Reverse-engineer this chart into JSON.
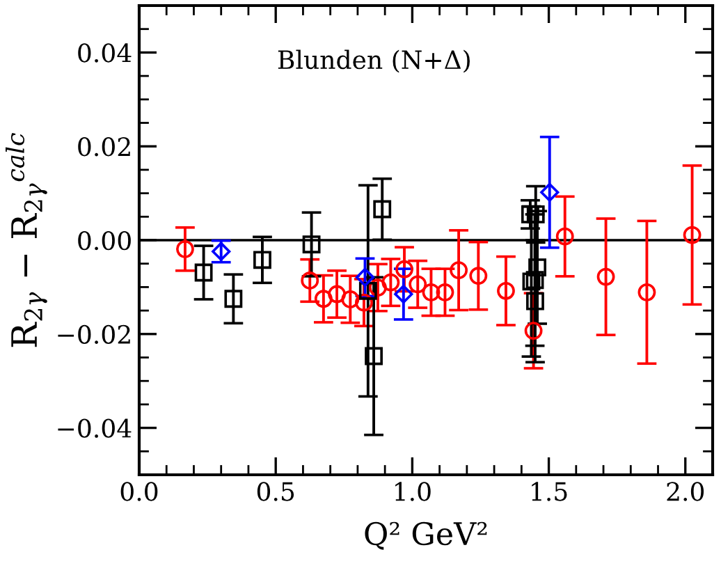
{
  "chart_data": {
    "type": "scatter",
    "xlabel": "Q² GeV²",
    "ylabel": "R$_{2γ}$ − R$_{2γ}$$^{calc}$",
    "annotations": [
      "Blunden (N+Δ)"
    ],
    "xlim": [
      0,
      2.1
    ],
    "xticks": [
      {
        "value": 0,
        "label": "0.0"
      },
      0.5,
      {
        "value": 1,
        "label": "1.0"
      },
      1.5,
      {
        "value": 2,
        "label": "2.0"
      }
    ],
    "ylim": [
      -0.05,
      0.05
    ],
    "yticks": [
      {
        "value": -0.04,
        "label": "−0.04"
      },
      {
        "value": -0.02,
        "label": "−0.02"
      },
      {
        "value": 0,
        "label": "0.00"
      },
      0.02,
      0.04
    ],
    "grid": false,
    "legend": false,
    "ref_lines": [
      {
        "axis": "y",
        "value": 0,
        "color": "#000000",
        "line_style": "solid"
      }
    ],
    "series": [
      {
        "color": "#ff0000",
        "marker": "circle",
        "x": [
          0.168,
          0.625,
          0.675,
          0.724,
          0.773,
          0.823,
          0.874,
          0.921,
          0.971,
          1.02,
          1.069,
          1.12,
          1.17,
          1.242,
          1.343,
          1.444,
          1.559,
          1.709,
          1.859,
          2.025
        ],
        "values": [
          -0.0019,
          -0.0086,
          -0.0125,
          -0.0115,
          -0.0126,
          -0.0133,
          -0.0101,
          -0.009,
          -0.0062,
          -0.0094,
          -0.0111,
          -0.0111,
          -0.0064,
          -0.0076,
          -0.0108,
          -0.0193,
          0.0008,
          -0.0078,
          -0.0111,
          0.0011
        ],
        "errors": [
          0.0046,
          0.0045,
          0.005,
          0.005,
          0.005,
          0.005,
          0.005,
          0.005,
          0.0047,
          0.005,
          0.005,
          0.005,
          0.0085,
          0.0072,
          0.0073,
          0.008,
          0.0085,
          0.0124,
          0.0152,
          0.0148
        ]
      },
      {
        "color": "#000000",
        "marker": "square",
        "x": [
          0.236,
          0.345,
          0.451,
          0.631,
          0.838,
          0.859,
          0.89,
          1.432,
          1.452,
          1.458,
          1.449,
          1.436,
          1.45
        ],
        "values": [
          -0.0069,
          -0.0125,
          -0.0042,
          -0.0009,
          -0.0108,
          -0.0247,
          0.0066,
          0.0055,
          0.0055,
          -0.0058,
          -0.0085,
          -0.0088,
          -0.013
        ],
        "errors": [
          0.0057,
          0.0052,
          0.0049,
          0.0068,
          0.0225,
          0.0168,
          0.0065,
          0.003,
          0.006,
          0.012,
          0.014,
          0.016,
          0.013
        ]
      },
      {
        "color": "#0000ff",
        "marker": "diamond",
        "x": [
          0.3,
          0.827,
          0.968,
          1.503
        ],
        "values": [
          -0.0024,
          -0.0079,
          -0.0115,
          0.0102
        ],
        "errors": [
          0.0023,
          0.004,
          0.0054,
          0.0118
        ]
      }
    ]
  }
}
